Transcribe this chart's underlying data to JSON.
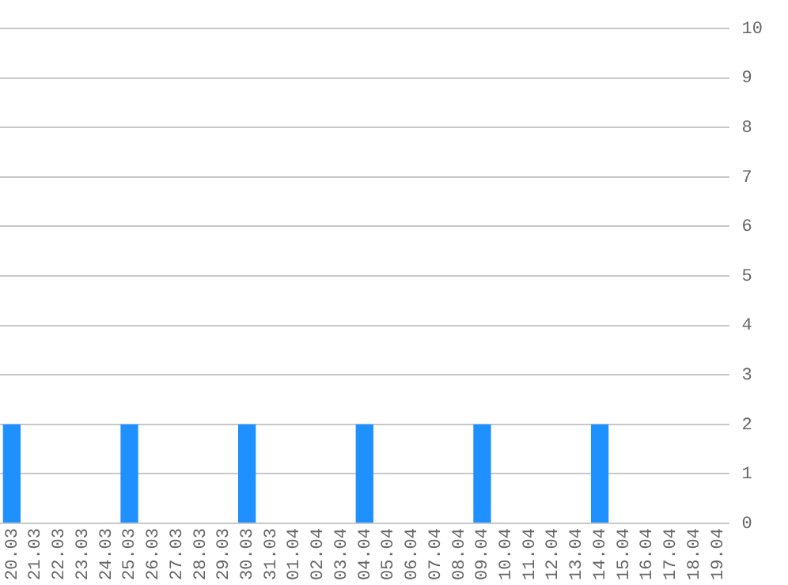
{
  "chart_data": {
    "type": "bar",
    "categories": [
      "20.03",
      "21.03",
      "22.03",
      "23.03",
      "24.03",
      "25.03",
      "26.03",
      "27.03",
      "28.03",
      "29.03",
      "30.03",
      "31.03",
      "01.04",
      "02.04",
      "03.04",
      "04.04",
      "05.04",
      "06.04",
      "07.04",
      "08.04",
      "09.04",
      "10.04",
      "11.04",
      "12.04",
      "13.04",
      "14.04",
      "15.04",
      "16.04",
      "17.04",
      "18.04",
      "19.04"
    ],
    "values": [
      2,
      0,
      0,
      0,
      0,
      2,
      0,
      0,
      0,
      0,
      2,
      0,
      0,
      0,
      0,
      2,
      0,
      0,
      0,
      0,
      2,
      0,
      0,
      0,
      0,
      2,
      0,
      0,
      0,
      0,
      0
    ],
    "color": "#1e90ff",
    "ylim": [
      0,
      10
    ],
    "yticks": [
      0,
      1,
      2,
      3,
      4,
      5,
      6,
      7,
      8,
      9,
      10
    ],
    "grid": "y",
    "legend": false
  }
}
